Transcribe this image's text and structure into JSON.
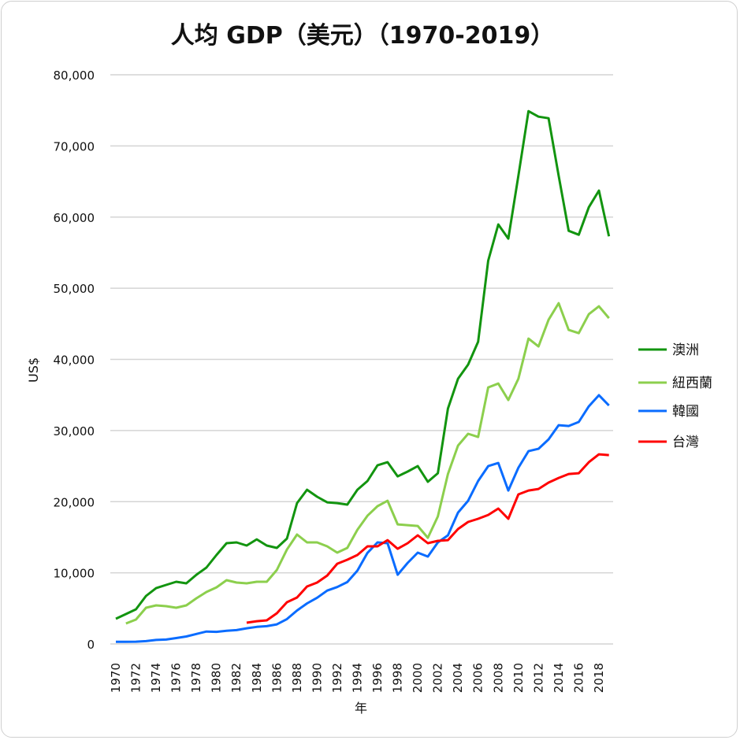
{
  "chart_data": {
    "type": "line",
    "title": "人均 GDP（美元）（1970-2019）",
    "xlabel": "年",
    "ylabel": "US$",
    "ylim": [
      0,
      80000
    ],
    "yticks": [
      "0",
      "10,000",
      "20,000",
      "30,000",
      "40,000",
      "50,000",
      "60,000",
      "70,000",
      "80,000"
    ],
    "xticks": [
      "1970",
      "1972",
      "1974",
      "1976",
      "1978",
      "1980",
      "1982",
      "1984",
      "1986",
      "1988",
      "1990",
      "1992",
      "1994",
      "1996",
      "1998",
      "2000",
      "2002",
      "2004",
      "2006",
      "2008",
      "2010",
      "2012",
      "2014",
      "2016",
      "2018"
    ],
    "x_start": 1970,
    "x_end": 2019,
    "grid": "horizontal",
    "legend_position": "right",
    "series": [
      {
        "name": "澳洲",
        "color": "#12940f",
        "start": 1970,
        "values": [
          3540,
          4200,
          4870,
          6750,
          7850,
          8300,
          8740,
          8520,
          9730,
          10730,
          12500,
          14160,
          14270,
          13830,
          14710,
          13830,
          13500,
          14820,
          19800,
          21680,
          20690,
          19910,
          19800,
          19580,
          21680,
          22900,
          25110,
          25550,
          23560,
          24230,
          25000,
          22790,
          24000,
          33080,
          37280,
          39270,
          42480,
          53870,
          58960,
          56970,
          65820,
          74890,
          74110,
          73890,
          65820,
          58070,
          57520,
          61390,
          63720,
          57300
        ]
      },
      {
        "name": "紐西蘭",
        "color": "#8ccf4d",
        "start": 1971,
        "values": [
          2880,
          3430,
          5090,
          5420,
          5310,
          5090,
          5420,
          6420,
          7300,
          7960,
          8960,
          8630,
          8520,
          8740,
          8740,
          10400,
          13270,
          15380,
          14270,
          14270,
          13720,
          12830,
          13500,
          16040,
          18030,
          19360,
          20130,
          16810,
          16700,
          16590,
          14930,
          17920,
          23890,
          27880,
          29540,
          29090,
          36060,
          36600,
          34290,
          37280,
          42920,
          41810,
          45570,
          47900,
          44140,
          43690,
          46350,
          47460,
          45800
        ]
      },
      {
        "name": "韓國",
        "color": "#0a6cff",
        "start": 1970,
        "values": [
          300,
          300,
          320,
          400,
          560,
          620,
          830,
          1050,
          1400,
          1750,
          1700,
          1850,
          1950,
          2200,
          2400,
          2500,
          2750,
          3500,
          4700,
          5700,
          6500,
          7500,
          8000,
          8700,
          10300,
          12800,
          14270,
          14160,
          9730,
          11400,
          12830,
          12280,
          14270,
          15270,
          18470,
          20130,
          22900,
          25000,
          25440,
          21570,
          24780,
          27100,
          27430,
          28760,
          30750,
          30640,
          31200,
          33410,
          34960,
          33520
        ]
      },
      {
        "name": "台灣",
        "color": "#ff0000",
        "start": 1983,
        "values": [
          2990,
          3200,
          3320,
          4310,
          5860,
          6530,
          8080,
          8630,
          9620,
          11280,
          11840,
          12500,
          13720,
          13720,
          14600,
          13380,
          14160,
          15270,
          14160,
          14490,
          14600,
          16150,
          17150,
          17590,
          18140,
          19030,
          17590,
          21020,
          21570,
          21790,
          22680,
          23340,
          23890,
          24000,
          25550,
          26660,
          26550
        ]
      }
    ]
  }
}
